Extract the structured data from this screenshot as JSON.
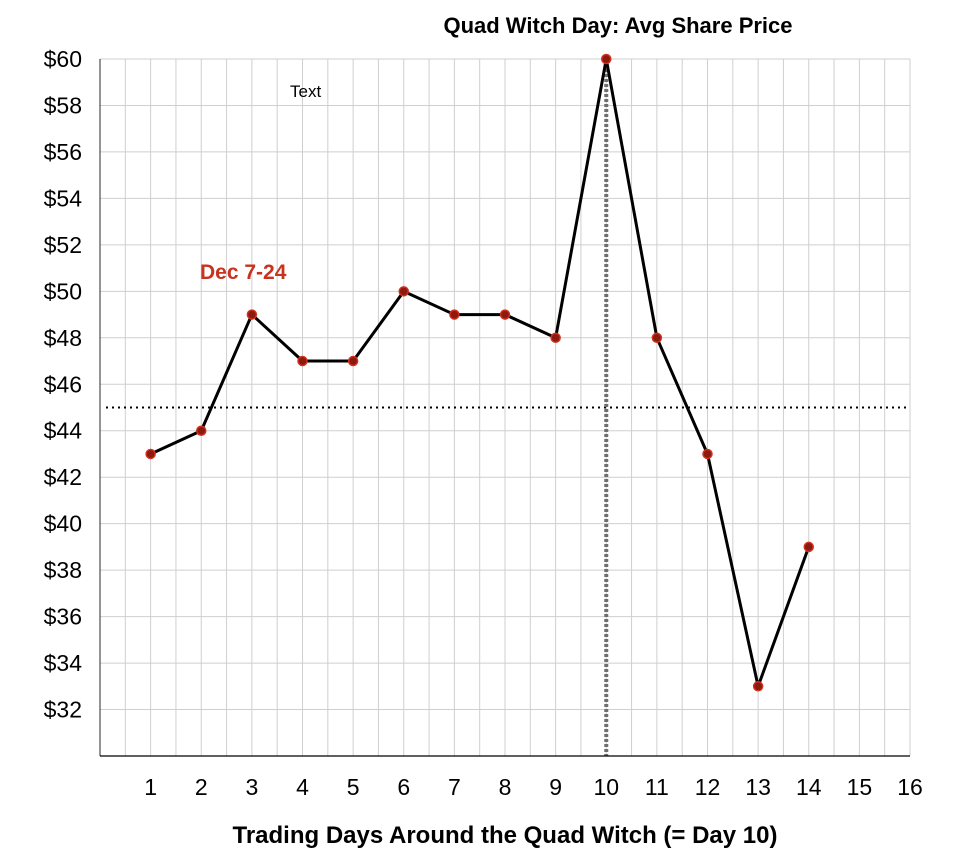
{
  "chart_data": {
    "type": "line",
    "title": "Quad Witch Day: Avg Share Price",
    "xlabel": "Trading Days Around the Quad Witch (= Day 10)",
    "ylabel": "",
    "x_ticks": [
      "1",
      "2",
      "3",
      "4",
      "5",
      "6",
      "7",
      "8",
      "9",
      "10",
      "11",
      "12",
      "13",
      "14",
      "15",
      "16"
    ],
    "y_ticks": [
      "$32",
      "$34",
      "$36",
      "$38",
      "$40",
      "$42",
      "$44",
      "$46",
      "$48",
      "$50",
      "$52",
      "$54",
      "$56",
      "$58",
      "$60"
    ],
    "xlim": [
      0,
      16
    ],
    "ylim": [
      30,
      60
    ],
    "grid": true,
    "series": [
      {
        "x": [
          1,
          2,
          3,
          4,
          5,
          6,
          7,
          8,
          9,
          10,
          11,
          12,
          13,
          14
        ],
        "values": [
          43,
          44,
          49,
          47,
          47,
          50,
          49,
          49,
          48,
          60,
          48,
          43,
          33,
          39
        ]
      }
    ],
    "reference_lines": {
      "horizontal_y": 45,
      "vertical_x": 10
    },
    "annotations": {
      "period_label": "Dec 7-24",
      "text_box": "Text"
    },
    "colors": {
      "line": "#000000",
      "marker_fill": "#8b1a10",
      "marker_edge": "#d2301c",
      "annotation_red": "#c8321e",
      "grid": "#cfcfcf",
      "vertical_ref": "#6f6f6f"
    }
  }
}
